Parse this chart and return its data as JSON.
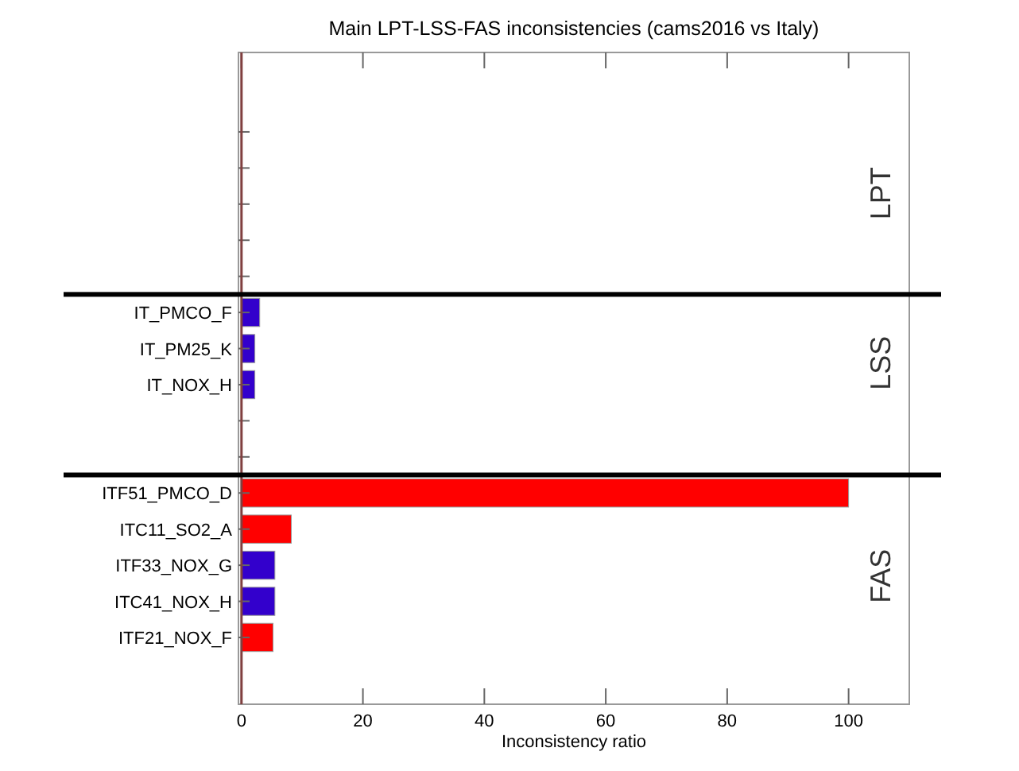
{
  "chart_data": {
    "type": "bar",
    "orientation": "horizontal",
    "title": "Main LPT-LSS-FAS inconsistencies (cams2016 vs Italy)",
    "xlabel": "Inconsistency ratio",
    "categories": [
      null,
      null,
      null,
      null,
      null,
      "IT_PMCO_F",
      "IT_PM25_K",
      "IT_NOX_H",
      null,
      null,
      "ITF51_PMCO_D",
      "ITC11_SO2_A",
      "ITF33_NOX_G",
      "ITC41_NOX_H",
      "ITF21_NOX_F"
    ],
    "values": [
      null,
      null,
      null,
      null,
      null,
      3,
      2.2,
      2.2,
      null,
      null,
      100,
      8.2,
      5.5,
      5.5,
      5.2
    ],
    "colors": [
      null,
      null,
      null,
      null,
      null,
      "#3300cc",
      "#3300cc",
      "#3300cc",
      null,
      null,
      "#ff0000",
      "#ff0000",
      "#3300cc",
      "#3300cc",
      "#ff0000"
    ],
    "xlim": [
      -0.5,
      110
    ],
    "xticks": [
      0,
      20,
      40,
      60,
      80,
      100
    ],
    "ref_lines": [
      {
        "axis": "x",
        "value": 0,
        "color": "#804040"
      }
    ],
    "annotations": [
      "LPT",
      "LSS",
      "FAS"
    ],
    "grid": false
  }
}
